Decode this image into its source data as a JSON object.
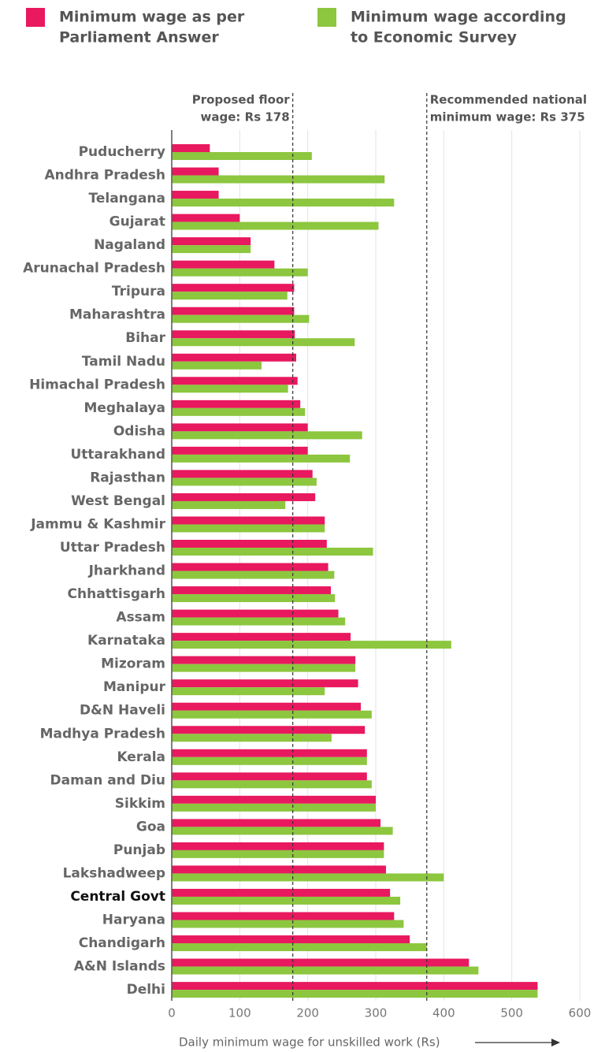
{
  "chart_data": {
    "type": "bar",
    "orientation": "horizontal",
    "categories": [
      "Puducherry",
      "Andhra Pradesh",
      "Telangana",
      "Gujarat",
      "Nagaland",
      "Arunachal Pradesh",
      "Tripura",
      "Maharashtra",
      "Bihar",
      "Tamil Nadu",
      "Himachal Pradesh",
      "Meghalaya",
      "Odisha",
      "Uttarakhand",
      "Rajasthan",
      "West Bengal",
      "Jammu & Kashmir",
      "Uttar Pradesh",
      "Jharkhand",
      "Chhattisgarh",
      "Assam",
      "Karnataka",
      "Mizoram",
      "Manipur",
      "D&N Haveli",
      "Madhya Pradesh",
      "Kerala",
      "Daman and Diu",
      "Sikkim",
      "Goa",
      "Punjab",
      "Lakshadweep",
      "Central Govt",
      "Haryana",
      "Chandigarh",
      "A&N Islands",
      "Delhi"
    ],
    "highlight": "Central Govt",
    "series": [
      {
        "name": [
          "Minimum wage as per",
          "Parliament Answer"
        ],
        "color": "#e8195f",
        "values": [
          56,
          69,
          69,
          100,
          116,
          151,
          180,
          180,
          181,
          183,
          185,
          189,
          200,
          200,
          207,
          211,
          225,
          228,
          230,
          234,
          245,
          263,
          270,
          274,
          278,
          284,
          287,
          287,
          300,
          307,
          312,
          315,
          321,
          327,
          350,
          437,
          538
        ]
      },
      {
        "name": [
          "Minimum wage according",
          "to Economic Survey"
        ],
        "color": "#8dc63f",
        "values": [
          206,
          313,
          327,
          304,
          116,
          200,
          170,
          202,
          269,
          132,
          171,
          196,
          280,
          262,
          213,
          167,
          225,
          296,
          239,
          240,
          255,
          411,
          270,
          225,
          294,
          235,
          287,
          294,
          300,
          325,
          312,
          400,
          336,
          341,
          375,
          451,
          538
        ]
      }
    ],
    "reference_lines": [
      {
        "value": 178,
        "label": [
          "Proposed floor",
          "wage: Rs 178"
        ]
      },
      {
        "value": 375,
        "label": [
          "Recommended national",
          "minimum wage: Rs 375"
        ]
      }
    ],
    "xlim": [
      0,
      600
    ],
    "xticks": [
      0,
      100,
      200,
      300,
      400,
      500,
      600
    ],
    "grid": true,
    "xlabel": "Daily minimum wage for unskilled work (Rs)"
  }
}
